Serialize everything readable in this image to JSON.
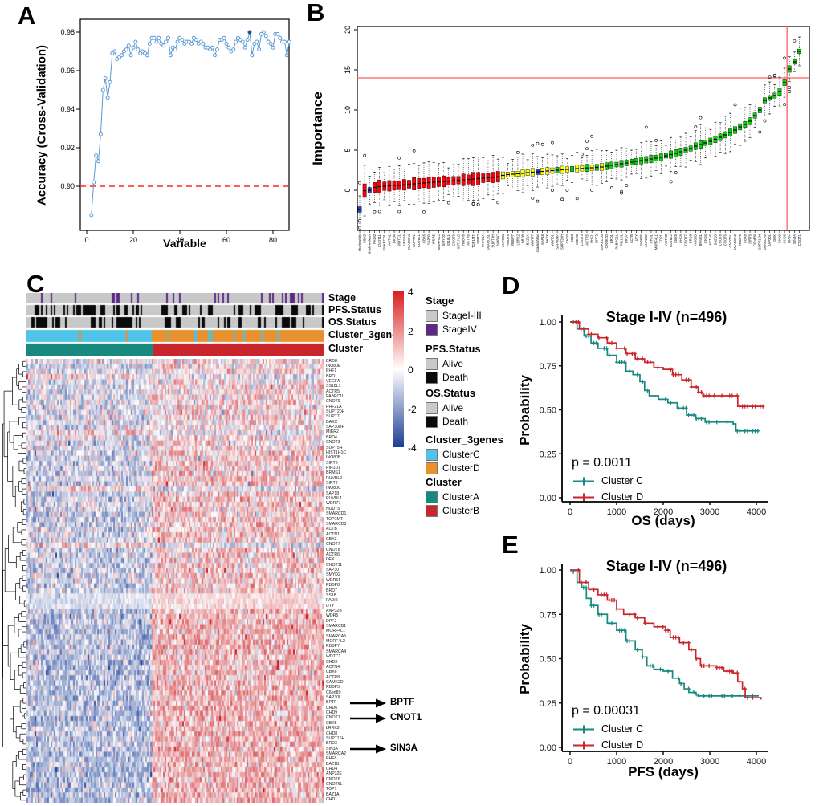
{
  "panels": {
    "a_label": "A",
    "b_label": "B",
    "c_label": "C",
    "d_label": "D",
    "e_label": "E"
  },
  "chart_data": [
    {
      "panel": "A",
      "type": "line",
      "xlabel": "Variable",
      "ylabel": "Accuracy (Cross-Validation)",
      "x_ticks": [
        "0",
        "20",
        "40",
        "60",
        "80"
      ],
      "y_ticks": [
        "0.90",
        "0.92",
        "0.94",
        "0.96",
        "0.98"
      ],
      "xlim": [
        0,
        88
      ],
      "ylim": [
        0.884,
        0.987
      ],
      "grid": false,
      "hline": {
        "y": 0.9,
        "color": "#ff2222",
        "style": "dashed"
      },
      "series_color": "#5b9bd5",
      "solid_point_color": "#1f4e9c",
      "x_start": 2,
      "solid_point_index": 68,
      "y": [
        0.885,
        0.902,
        0.916,
        0.913,
        0.927,
        0.95,
        0.956,
        0.946,
        0.954,
        0.969,
        0.97,
        0.966,
        0.967,
        0.968,
        0.97,
        0.971,
        0.973,
        0.968,
        0.972,
        0.975,
        0.971,
        0.969,
        0.97,
        0.969,
        0.968,
        0.974,
        0.977,
        0.977,
        0.975,
        0.977,
        0.974,
        0.973,
        0.975,
        0.977,
        0.968,
        0.972,
        0.971,
        0.975,
        0.977,
        0.976,
        0.974,
        0.975,
        0.975,
        0.974,
        0.977,
        0.976,
        0.974,
        0.975,
        0.974,
        0.972,
        0.972,
        0.971,
        0.972,
        0.968,
        0.971,
        0.976,
        0.976,
        0.977,
        0.974,
        0.972,
        0.97,
        0.971,
        0.975,
        0.977,
        0.976,
        0.975,
        0.972,
        0.976,
        0.98,
        0.968,
        0.974,
        0.975,
        0.971,
        0.979,
        0.98,
        0.978,
        0.975,
        0.974,
        0.972,
        0.979,
        0.979,
        0.977,
        0.975,
        0.975,
        0.968,
        0.975
      ]
    },
    {
      "panel": "B",
      "type": "boxplot",
      "ylabel": "Importance",
      "y_ticks": [
        "0",
        "5",
        "10",
        "15",
        "20"
      ],
      "ylim": [
        -4,
        20
      ],
      "hline": 14,
      "vline_between": [
        "CHD6",
        "BPTF"
      ],
      "ref_color": "#ff5f5f",
      "group_colors": {
        "s": "#2b43c8",
        "r": "#fb0007",
        "t": "#fdff00",
        "c": "#0bd20b"
      },
      "boxes": [
        [
          "shadowMin",
          -2.4,
          "s"
        ],
        [
          "CBX3",
          -0.05,
          "r"
        ],
        [
          "shadowMean",
          0.0,
          "s"
        ],
        [
          "PADI2",
          0.35,
          "r"
        ],
        [
          "CNOT11",
          0.45,
          "r"
        ],
        [
          "SMARCD1",
          0.5,
          "r"
        ],
        [
          "ACTN1",
          0.55,
          "r"
        ],
        [
          "BRD4",
          0.6,
          "r"
        ],
        [
          "WDTC1",
          0.62,
          "r"
        ],
        [
          "VEGFA",
          0.68,
          "r"
        ],
        [
          "SMARCA4",
          0.75,
          "r"
        ],
        [
          "SUPT7L",
          0.8,
          "r"
        ],
        [
          "RUVBL1",
          0.85,
          "r"
        ],
        [
          "CBX6",
          0.9,
          "r"
        ],
        [
          "SAP30",
          0.95,
          "r"
        ],
        [
          "WDR5",
          1.0,
          "r"
        ],
        [
          "MORF4L2",
          1.05,
          "r"
        ],
        [
          "SMYD2",
          1.1,
          "r"
        ],
        [
          "SS18L1",
          1.12,
          "r"
        ],
        [
          "CNOT9",
          1.18,
          "r"
        ],
        [
          "HIST1H1C",
          1.25,
          "r"
        ],
        [
          "RBBP8",
          1.3,
          "r"
        ],
        [
          "ACTR6",
          1.35,
          "r"
        ],
        [
          "TOP1MT",
          1.4,
          "r"
        ],
        [
          "SIRT2",
          1.45,
          "r"
        ],
        [
          "PHF21A",
          1.5,
          "r"
        ],
        [
          "SMARCB1",
          1.55,
          "r"
        ],
        [
          "SUPT3H",
          1.6,
          "r"
        ],
        [
          "INO80C",
          1.7,
          "r"
        ],
        [
          "ANP32B",
          1.85,
          "t"
        ],
        [
          "NUDT5",
          1.95,
          "t"
        ],
        [
          "RBBP7",
          2.0,
          "t"
        ],
        [
          "LRRK2",
          2.05,
          "t"
        ],
        [
          "BRD8",
          2.1,
          "t"
        ],
        [
          "BAZ1A",
          2.2,
          "t"
        ],
        [
          "WDR77",
          2.25,
          "t"
        ],
        [
          "shadowMax",
          2.3,
          "s"
        ],
        [
          "SAP18",
          2.35,
          "t"
        ],
        [
          "DAXX",
          2.4,
          "t"
        ],
        [
          "WDR61",
          2.45,
          "t"
        ],
        [
          "SAP30BP",
          2.5,
          "c"
        ],
        [
          "SUPT20H",
          2.55,
          "t"
        ],
        [
          "CHD3",
          2.6,
          "t"
        ],
        [
          "SS18",
          2.65,
          "c"
        ],
        [
          "MIER2",
          2.7,
          "t"
        ],
        [
          "CNOT3",
          2.72,
          "t"
        ],
        [
          "ACTR5",
          2.78,
          "c"
        ],
        [
          "PHF1",
          2.8,
          "t"
        ],
        [
          "DPF2",
          2.85,
          "c"
        ],
        [
          "SMARCD3",
          2.9,
          "t"
        ],
        [
          "CAMK2D",
          3.0,
          "c"
        ],
        [
          "BRD1",
          3.1,
          "c"
        ],
        [
          "PABPC1L",
          3.2,
          "c"
        ],
        [
          "PIH1D1",
          3.3,
          "c"
        ],
        [
          "BRD7",
          3.4,
          "c"
        ],
        [
          "ACTB",
          3.5,
          "c"
        ],
        [
          "UTY",
          3.6,
          "c"
        ],
        [
          "INO80E",
          3.7,
          "c"
        ],
        [
          "ANP32E",
          3.8,
          "c"
        ],
        [
          "CHD1",
          3.9,
          "c"
        ],
        [
          "MORF4L1",
          4.0,
          "c"
        ],
        [
          "TOP1",
          4.1,
          "c"
        ],
        [
          "ACTR8",
          4.3,
          "c"
        ],
        [
          "RUVBL2",
          4.45,
          "c"
        ],
        [
          "CBX5",
          4.6,
          "c"
        ],
        [
          "PHF8",
          4.8,
          "c"
        ],
        [
          "CNOT7",
          5.0,
          "c"
        ],
        [
          "BRD3",
          5.2,
          "c"
        ],
        [
          "INO80B",
          5.5,
          "c"
        ],
        [
          "BRMS1",
          5.7,
          "c"
        ],
        [
          "CHD4",
          5.9,
          "c"
        ],
        [
          "ACTN4",
          6.1,
          "c"
        ],
        [
          "BAZ1B",
          6.35,
          "c"
        ],
        [
          "CNOT8",
          6.6,
          "c"
        ],
        [
          "CNOT6",
          6.9,
          "c"
        ],
        [
          "CNOT6L",
          7.2,
          "c"
        ],
        [
          "SMARCA2",
          7.5,
          "c"
        ],
        [
          "RBBP5",
          7.9,
          "c"
        ],
        [
          "CBX8",
          8.2,
          "c"
        ],
        [
          "SIRT6",
          8.6,
          "c"
        ],
        [
          "C6orf89",
          9.3,
          "c"
        ],
        [
          "SUPT16H",
          10.0,
          "c"
        ],
        [
          "SMARCA5",
          11.2,
          "c"
        ],
        [
          "SAP30L",
          11.5,
          "c"
        ],
        [
          "DEK",
          11.8,
          "c"
        ],
        [
          "CHD9",
          12.3,
          "c"
        ],
        [
          "CHD6",
          13.4,
          "c"
        ],
        [
          "BPTF",
          15.1,
          "c"
        ],
        [
          "SIN3A",
          16.0,
          "c"
        ],
        [
          "CNOT1",
          17.3,
          "c"
        ]
      ]
    },
    {
      "panel": "C",
      "type": "heatmap",
      "colorbar": {
        "ticks": [
          "4",
          "2",
          "0",
          "-2",
          "-4"
        ],
        "max_color": "#d8201f",
        "mid_color": "#ffffff",
        "min_color": "#1c3d94"
      },
      "annotation_labels": [
        "Stage",
        "PFS.Status",
        "OS.Status",
        "Cluster_3genes",
        "Cluster"
      ],
      "legend": [
        {
          "title": "Stage",
          "entries": [
            {
              "label": "StageI-III",
              "color": "#c9c9c9"
            },
            {
              "label": "StageIV",
              "color": "#5c2a84"
            }
          ]
        },
        {
          "title": "PFS.Status",
          "entries": [
            {
              "label": "Alive",
              "color": "#c9c9c9"
            },
            {
              "label": "Death",
              "color": "#0a0a0a"
            }
          ]
        },
        {
          "title": "OS.Status",
          "entries": [
            {
              "label": "Alive",
              "color": "#c9c9c9"
            },
            {
              "label": "Death",
              "color": "#0a0a0a"
            }
          ]
        },
        {
          "title": "Cluster_3genes",
          "entries": [
            {
              "label": "ClusterC",
              "color": "#4fc3e8"
            },
            {
              "label": "ClusterD",
              "color": "#e8912d"
            }
          ]
        },
        {
          "title": "Cluster",
          "entries": [
            {
              "label": "ClusterA",
              "color": "#17897e"
            },
            {
              "label": "ClusterB",
              "color": "#c9252c"
            }
          ]
        }
      ],
      "row_genes": [
        "BRD8",
        "INO80E",
        "PHF1",
        "BRD1",
        "VEGFA",
        "SS18L1",
        "ACTR5",
        "PABPC1L",
        "CNOT9",
        "PHF21A",
        "SUPT20H",
        "SUPT7L",
        "DAXX",
        "SAP30BP",
        "MIER2",
        "BRD4",
        "CNOT3",
        "SUPT5H",
        "HIST1H1C",
        "INO80B",
        "SIRT6",
        "PIH1D1",
        "BRMS1",
        "RUVBL2",
        "SIRT2",
        "INO80C",
        "SAP18",
        "RUVBL1",
        "WDR77",
        "NUDT5",
        "SMARCD1",
        "TOP1MT",
        "SMARCD3",
        "ACTB",
        "ACTN1",
        "CBX3",
        "CNOT7",
        "CNOT8",
        "ACTR6",
        "DEK",
        "CNOT11",
        "SAP30",
        "SMYD2",
        "WDR61",
        "RBBP8",
        "BRD7",
        "SS18",
        "PADI2",
        "UTY",
        "ANP32B",
        "WDR5",
        "DPF2",
        "SMARCB1",
        "MORF4L1",
        "SMARCA5",
        "MORF4L2",
        "RBBP7",
        "SMARCA4",
        "WDTC1",
        "CHD3",
        "ACTN4",
        "CBX6",
        "ACTR8",
        "CAMK2D",
        "RBBP5",
        "C6orf89",
        "SAP30L",
        "BPTF",
        "CHD6",
        "CHD9",
        "CNOT1",
        "CBX5",
        "LRRK2",
        "CHD8",
        "SUPT16H",
        "BRD3",
        "SIN3A",
        "SMARCA2",
        "PHF8",
        "BAZ1B",
        "CHD4",
        "ANP32E",
        "CNOT6",
        "CNOT6L",
        "TOP1",
        "BAZ1A",
        "CHD1"
      ],
      "highlighted_genes": [
        "BPTF",
        "CNOT1",
        "SIN3A"
      ],
      "n_columns": 185,
      "cluster_split_fraction": 0.42
    },
    {
      "panel": "D",
      "type": "km_curve",
      "title": "Stage I-IV (n=496)",
      "xlabel": "OS (days)",
      "ylabel": "Probability",
      "p_value": "p = 0.0011",
      "x_ticks": [
        "0",
        "1000",
        "2000",
        "3000",
        "4000"
      ],
      "y_ticks": [
        "0.00",
        "0.25",
        "0.50",
        "0.75",
        "1.00"
      ],
      "legend": [
        {
          "label": "Cluster C",
          "color": "#17897e"
        },
        {
          "label": "Cluster D",
          "color": "#c9252c"
        }
      ],
      "series": [
        {
          "name": "Cluster C",
          "color": "#17897e",
          "points": [
            [
              0,
              1.0
            ],
            [
              150,
              0.96
            ],
            [
              300,
              0.92
            ],
            [
              450,
              0.88
            ],
            [
              600,
              0.85
            ],
            [
              800,
              0.81
            ],
            [
              1000,
              0.77
            ],
            [
              1200,
              0.72
            ],
            [
              1350,
              0.7
            ],
            [
              1500,
              0.66
            ],
            [
              1600,
              0.61
            ],
            [
              1700,
              0.58
            ],
            [
              1900,
              0.56
            ],
            [
              2100,
              0.54
            ],
            [
              2300,
              0.51
            ],
            [
              2500,
              0.47
            ],
            [
              2700,
              0.45
            ],
            [
              2900,
              0.43
            ],
            [
              3500,
              0.42
            ],
            [
              3560,
              0.38
            ],
            [
              4050,
              0.38
            ]
          ]
        },
        {
          "name": "Cluster D",
          "color": "#c9252c",
          "points": [
            [
              0,
              1.0
            ],
            [
              200,
              0.96
            ],
            [
              400,
              0.93
            ],
            [
              600,
              0.91
            ],
            [
              800,
              0.88
            ],
            [
              1000,
              0.85
            ],
            [
              1200,
              0.82
            ],
            [
              1400,
              0.79
            ],
            [
              1600,
              0.77
            ],
            [
              1800,
              0.74
            ],
            [
              2000,
              0.73
            ],
            [
              2200,
              0.7
            ],
            [
              2400,
              0.67
            ],
            [
              2600,
              0.63
            ],
            [
              2750,
              0.6
            ],
            [
              2850,
              0.58
            ],
            [
              3550,
              0.58
            ],
            [
              3600,
              0.52
            ],
            [
              4150,
              0.52
            ]
          ]
        }
      ]
    },
    {
      "panel": "E",
      "type": "km_curve",
      "title": "Stage I-IV (n=496)",
      "xlabel": "PFS (days)",
      "ylabel": "Probability",
      "p_value": "p = 0.00031",
      "x_ticks": [
        "0",
        "1000",
        "2000",
        "3000",
        "4000"
      ],
      "y_ticks": [
        "0.00",
        "0.25",
        "0.50",
        "0.75",
        "1.00"
      ],
      "legend": [
        {
          "label": "Cluster C",
          "color": "#17897e"
        },
        {
          "label": "Cluster D",
          "color": "#c9252c"
        }
      ],
      "series": [
        {
          "name": "Cluster C",
          "color": "#17897e",
          "points": [
            [
              0,
              0.99
            ],
            [
              150,
              0.93
            ],
            [
              250,
              0.9
            ],
            [
              350,
              0.84
            ],
            [
              450,
              0.8
            ],
            [
              600,
              0.75
            ],
            [
              800,
              0.7
            ],
            [
              1000,
              0.66
            ],
            [
              1200,
              0.6
            ],
            [
              1400,
              0.55
            ],
            [
              1550,
              0.51
            ],
            [
              1650,
              0.46
            ],
            [
              1800,
              0.44
            ],
            [
              2000,
              0.43
            ],
            [
              2200,
              0.39
            ],
            [
              2350,
              0.36
            ],
            [
              2450,
              0.33
            ],
            [
              2550,
              0.31
            ],
            [
              2700,
              0.3
            ],
            [
              2750,
              0.29
            ],
            [
              4050,
              0.29
            ]
          ]
        },
        {
          "name": "Cluster D",
          "color": "#c9252c",
          "points": [
            [
              0,
              1.0
            ],
            [
              200,
              0.93
            ],
            [
              400,
              0.89
            ],
            [
              600,
              0.86
            ],
            [
              800,
              0.83
            ],
            [
              1000,
              0.78
            ],
            [
              1150,
              0.75
            ],
            [
              1400,
              0.73
            ],
            [
              1600,
              0.7
            ],
            [
              1800,
              0.68
            ],
            [
              2050,
              0.66
            ],
            [
              2150,
              0.62
            ],
            [
              2350,
              0.59
            ],
            [
              2550,
              0.55
            ],
            [
              2700,
              0.5
            ],
            [
              2800,
              0.46
            ],
            [
              3150,
              0.45
            ],
            [
              3300,
              0.43
            ],
            [
              3500,
              0.42
            ],
            [
              3600,
              0.37
            ],
            [
              3700,
              0.33
            ],
            [
              3760,
              0.28
            ],
            [
              4100,
              0.27
            ]
          ]
        }
      ]
    }
  ]
}
